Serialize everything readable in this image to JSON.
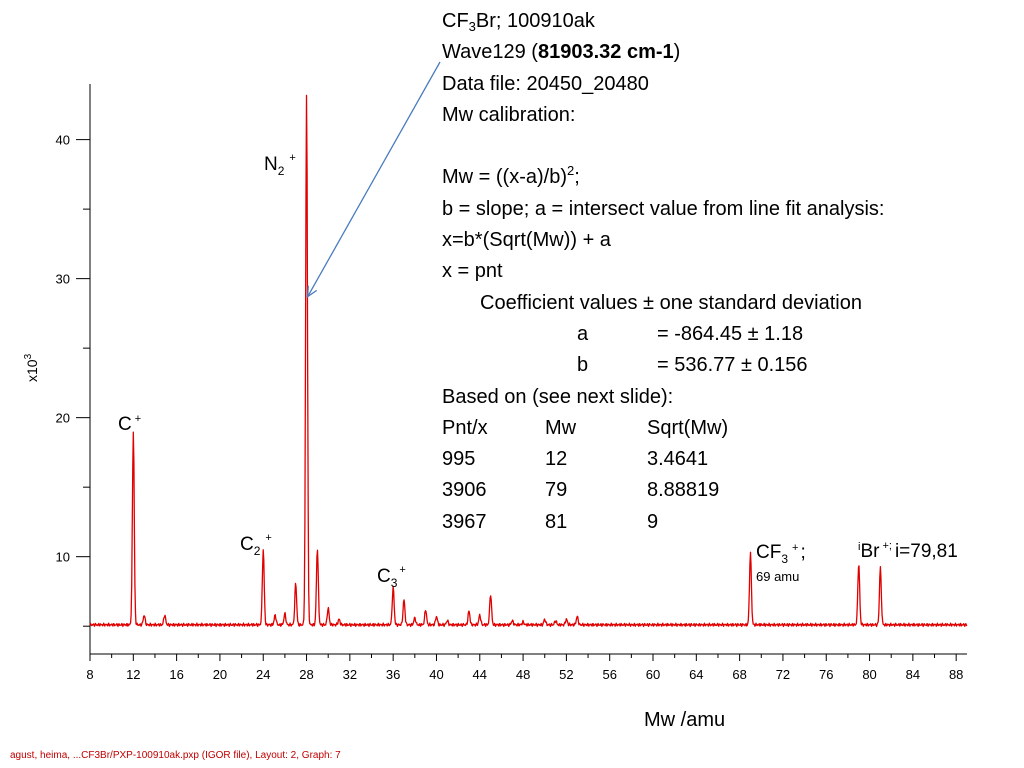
{
  "info": {
    "l1_pre": "CF",
    "l1_sub": "3",
    "l1_post": "Br; 100910ak",
    "l2_pre": "Wave129 (",
    "l2_bold": "81903.32 cm-1",
    "l2_post": ")",
    "l3": "Data file: 20450_20480",
    "l4": "Mw calibration:",
    "l5_pre": "Mw = ((x-a)/b)",
    "l5_sup": "2",
    "l5_post": ";",
    "l6": "b = slope; a = intersect value from line fit analysis:",
    "l7": "x=b*(Sqrt(Mw)) + a",
    "l8": "x = pnt",
    "coef_title": "Coefficient values ± one standard deviation",
    "coef": [
      {
        "name": "a",
        "value": "= -864.45 ± 1.18"
      },
      {
        "name": "b",
        "value": "= 536.77 ± 0.156"
      }
    ],
    "based_on": "Based on (see next slide):",
    "table_header": [
      "Pnt/x",
      "Mw",
      "Sqrt(Mw)"
    ],
    "table_rows": [
      [
        "995",
        "12",
        "3.4641"
      ],
      [
        "3906",
        "79",
        "8.88819"
      ],
      [
        "3967",
        "81",
        "9"
      ]
    ]
  },
  "footer": "agust, heima, ...CF3Br/PXP-100910ak.pxp (IGOR file), Layout: 2, Graph: 7",
  "chart_data": {
    "type": "line",
    "color": "#e00000",
    "xlabel": "Mw /amu",
    "ylabel": "x10",
    "ylabel_sup": "3",
    "xlim": [
      8,
      89
    ],
    "ylim": [
      3,
      44
    ],
    "x_ticks": [
      8,
      12,
      16,
      20,
      24,
      28,
      32,
      36,
      40,
      44,
      48,
      52,
      56,
      60,
      64,
      68,
      72,
      76,
      80,
      84,
      88
    ],
    "y_ticks": [
      10,
      20,
      30,
      40
    ],
    "baseline": 5.1,
    "peaks": [
      {
        "x": 12,
        "y": 19.0
      },
      {
        "x": 13,
        "y": 5.8
      },
      {
        "x": 14.9,
        "y": 5.8
      },
      {
        "x": 24,
        "y": 10.5
      },
      {
        "x": 25.1,
        "y": 5.8
      },
      {
        "x": 26,
        "y": 5.9
      },
      {
        "x": 27,
        "y": 8.1
      },
      {
        "x": 28,
        "y": 43.2
      },
      {
        "x": 29,
        "y": 10.6
      },
      {
        "x": 30,
        "y": 6.3
      },
      {
        "x": 31,
        "y": 5.5
      },
      {
        "x": 36,
        "y": 7.8
      },
      {
        "x": 37,
        "y": 6.9
      },
      {
        "x": 38,
        "y": 5.6
      },
      {
        "x": 39,
        "y": 6.2
      },
      {
        "x": 40,
        "y": 5.7
      },
      {
        "x": 41,
        "y": 5.4
      },
      {
        "x": 43,
        "y": 6.1
      },
      {
        "x": 44,
        "y": 5.8
      },
      {
        "x": 45,
        "y": 7.3
      },
      {
        "x": 47,
        "y": 5.4
      },
      {
        "x": 48,
        "y": 5.3
      },
      {
        "x": 50,
        "y": 5.5
      },
      {
        "x": 51,
        "y": 5.4
      },
      {
        "x": 52,
        "y": 5.5
      },
      {
        "x": 53,
        "y": 5.7
      },
      {
        "x": 69,
        "y": 10.3
      },
      {
        "x": 79,
        "y": 9.5
      },
      {
        "x": 81,
        "y": 9.2
      }
    ],
    "annotations": {
      "c_plus": "C",
      "c_plus_sup": "+",
      "n2_pre": "N",
      "n2_sub": "2",
      "n2_sup": "+",
      "c2_pre": "C",
      "c2_sub": "2",
      "c2_sup": "+",
      "c3_pre": "C",
      "c3_sub": "3",
      "c3_sup": "+",
      "cf3_pre": "CF",
      "cf3_sub": "3",
      "cf3_sup": "+",
      "cf3_post": ";",
      "cf3_mass": "69 amu",
      "br_pre_sup": "i",
      "br_name": "Br",
      "br_sup": "+;",
      "br_post": "i=79,81"
    },
    "arrow_target": {
      "x": 28.1,
      "y": 28.7
    }
  }
}
